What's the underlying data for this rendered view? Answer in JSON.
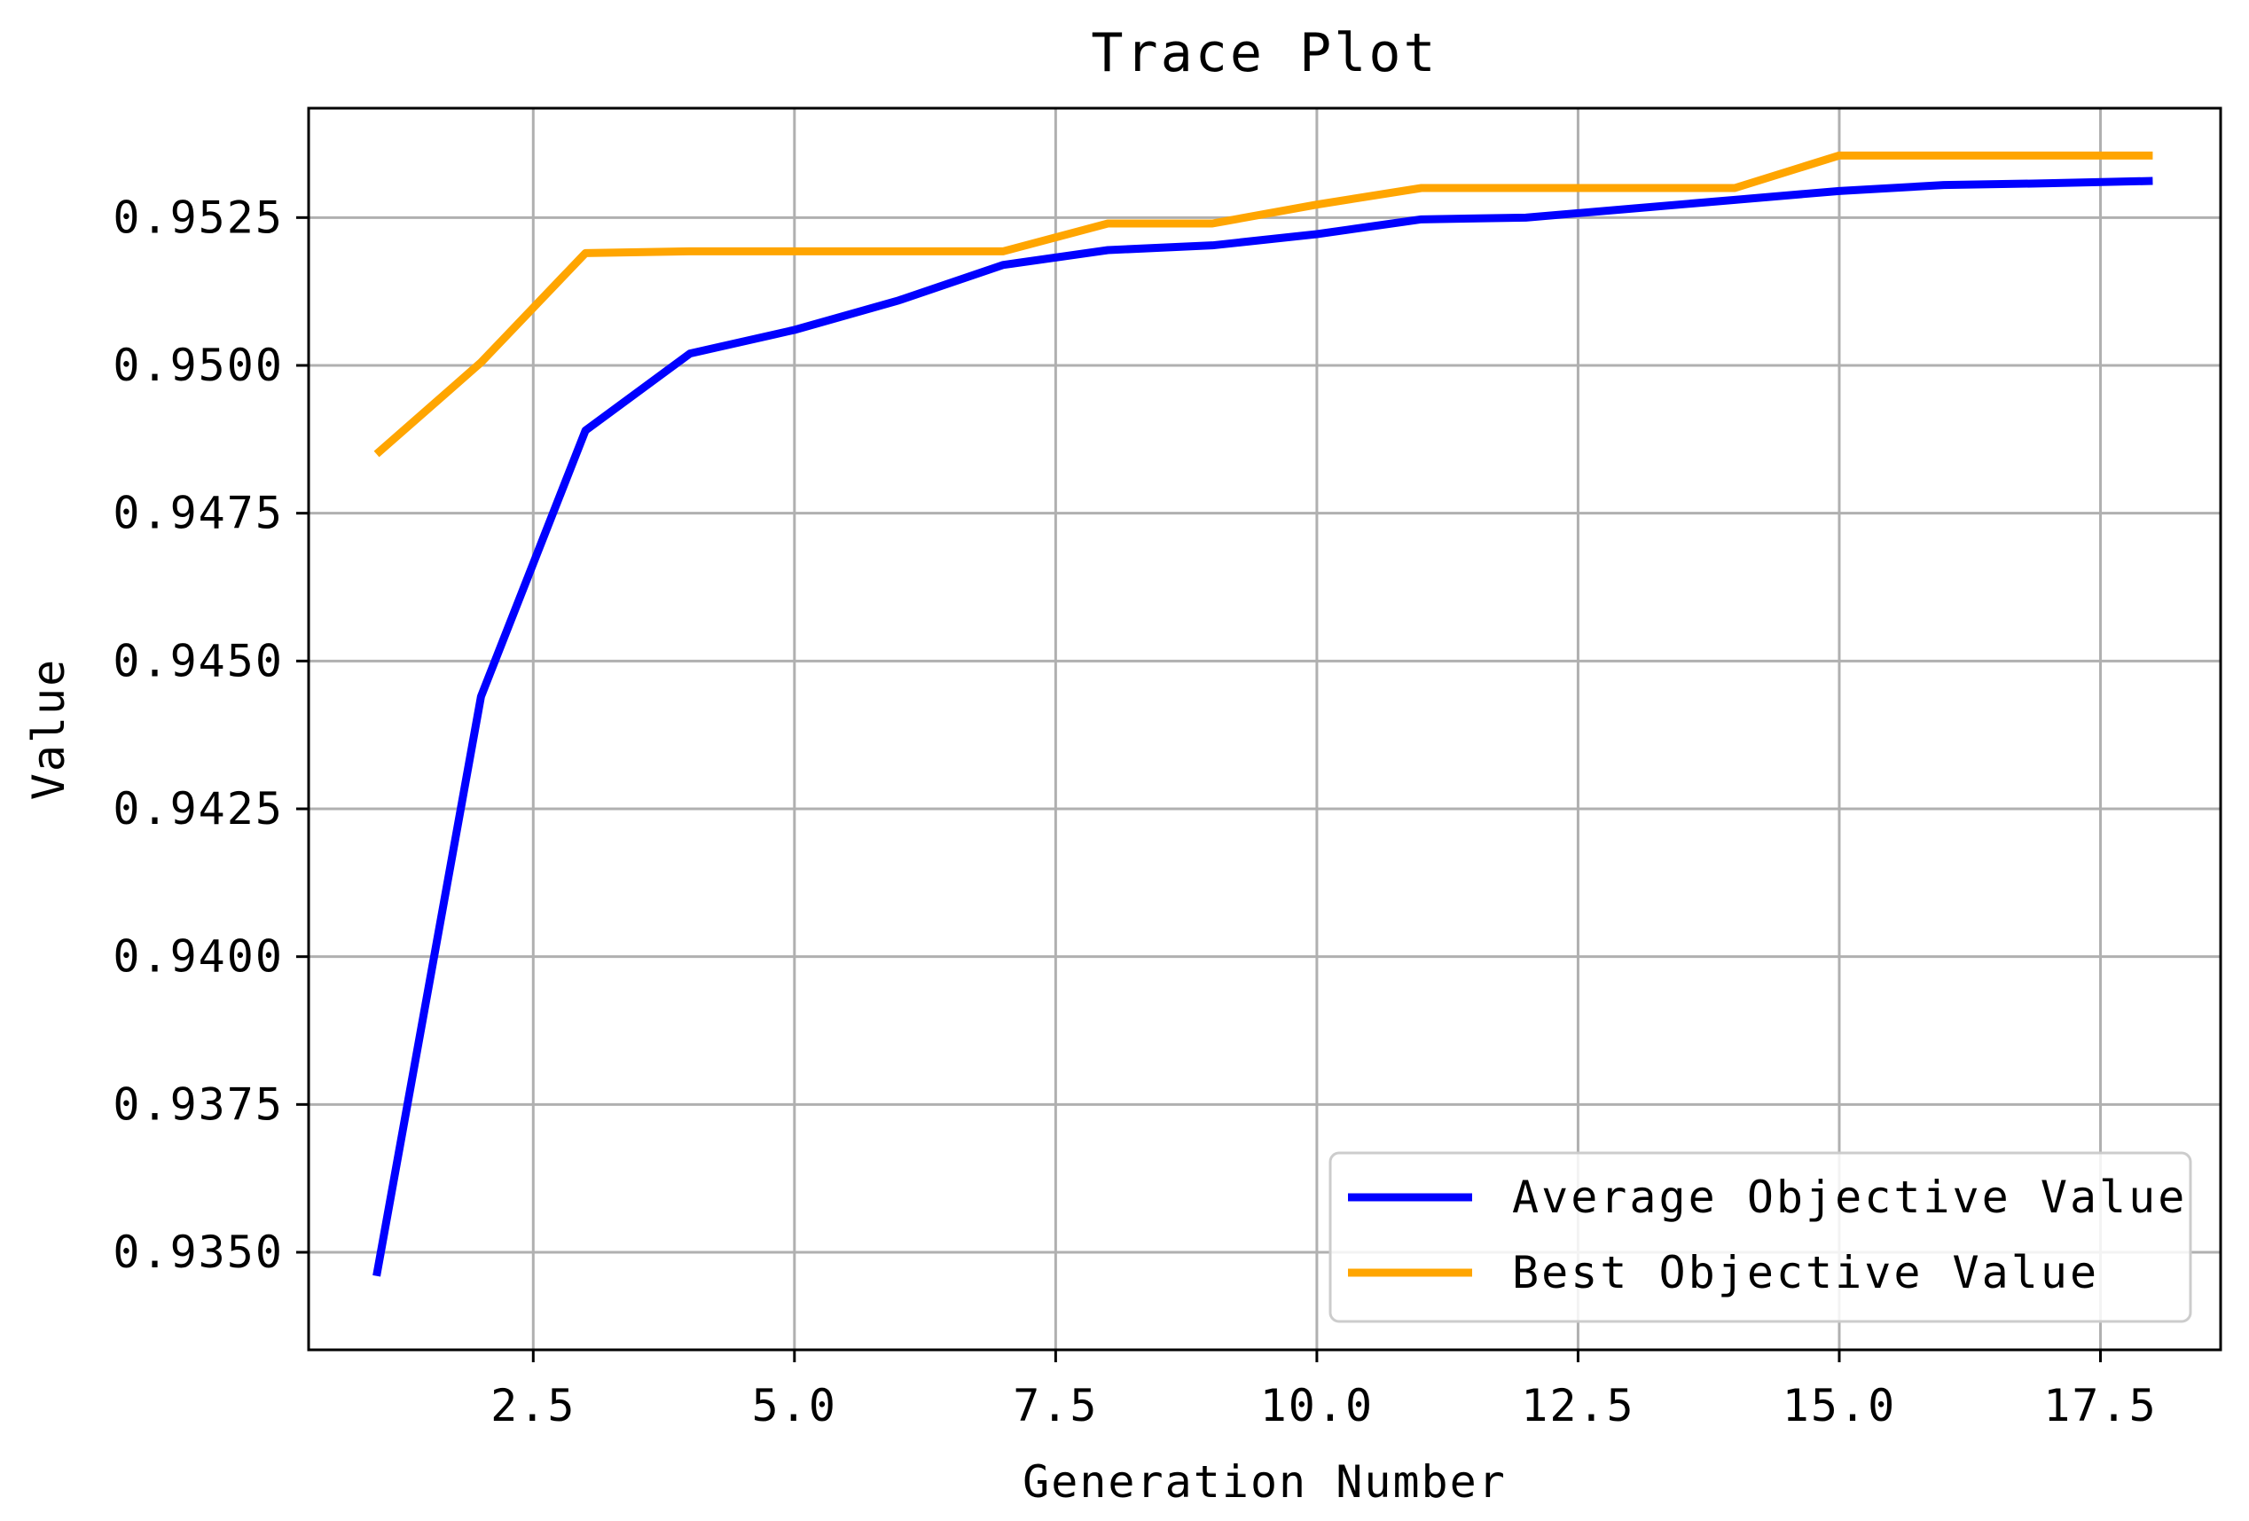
{
  "chart_data": {
    "type": "line",
    "title": "Trace Plot",
    "xlabel": "Generation Number",
    "ylabel": "Value",
    "xlim": [
      0.35,
      18.65
    ],
    "ylim": [
      0.93335,
      0.95435
    ],
    "xticks": [
      2.5,
      5.0,
      7.5,
      10.0,
      12.5,
      15.0,
      17.5
    ],
    "xtick_labels": [
      "2.5",
      "5.0",
      "7.5",
      "10.0",
      "12.5",
      "15.0",
      "17.5"
    ],
    "yticks": [
      0.935,
      0.9375,
      0.94,
      0.9425,
      0.945,
      0.9475,
      0.95,
      0.9525
    ],
    "ytick_labels": [
      "0.9350",
      "0.9375",
      "0.9400",
      "0.9425",
      "0.9450",
      "0.9475",
      "0.9500",
      "0.9525"
    ],
    "grid": true,
    "legend_position": "lower-right",
    "x": [
      1,
      2,
      3,
      4,
      5,
      6,
      7,
      8,
      9,
      10,
      11,
      12,
      13,
      14,
      15,
      16,
      17,
      18
    ],
    "series": [
      {
        "name": "Average Objective Value",
        "color": "#0000ff",
        "values": [
          0.9346,
          0.9444,
          0.9489,
          0.9502,
          0.9506,
          0.9511,
          0.9517,
          0.95195,
          0.95203,
          0.95222,
          0.95247,
          0.9525,
          0.95265,
          0.9528,
          0.95295,
          0.95305,
          0.95308,
          0.95312
        ]
      },
      {
        "name": "Best Objective Value",
        "color": "#ffa500",
        "values": [
          0.9485,
          0.95005,
          0.9519,
          0.95193,
          0.95193,
          0.95193,
          0.95193,
          0.9524,
          0.9524,
          0.95272,
          0.953,
          0.953,
          0.953,
          0.953,
          0.95355,
          0.95355,
          0.95355,
          0.95355
        ]
      }
    ]
  }
}
